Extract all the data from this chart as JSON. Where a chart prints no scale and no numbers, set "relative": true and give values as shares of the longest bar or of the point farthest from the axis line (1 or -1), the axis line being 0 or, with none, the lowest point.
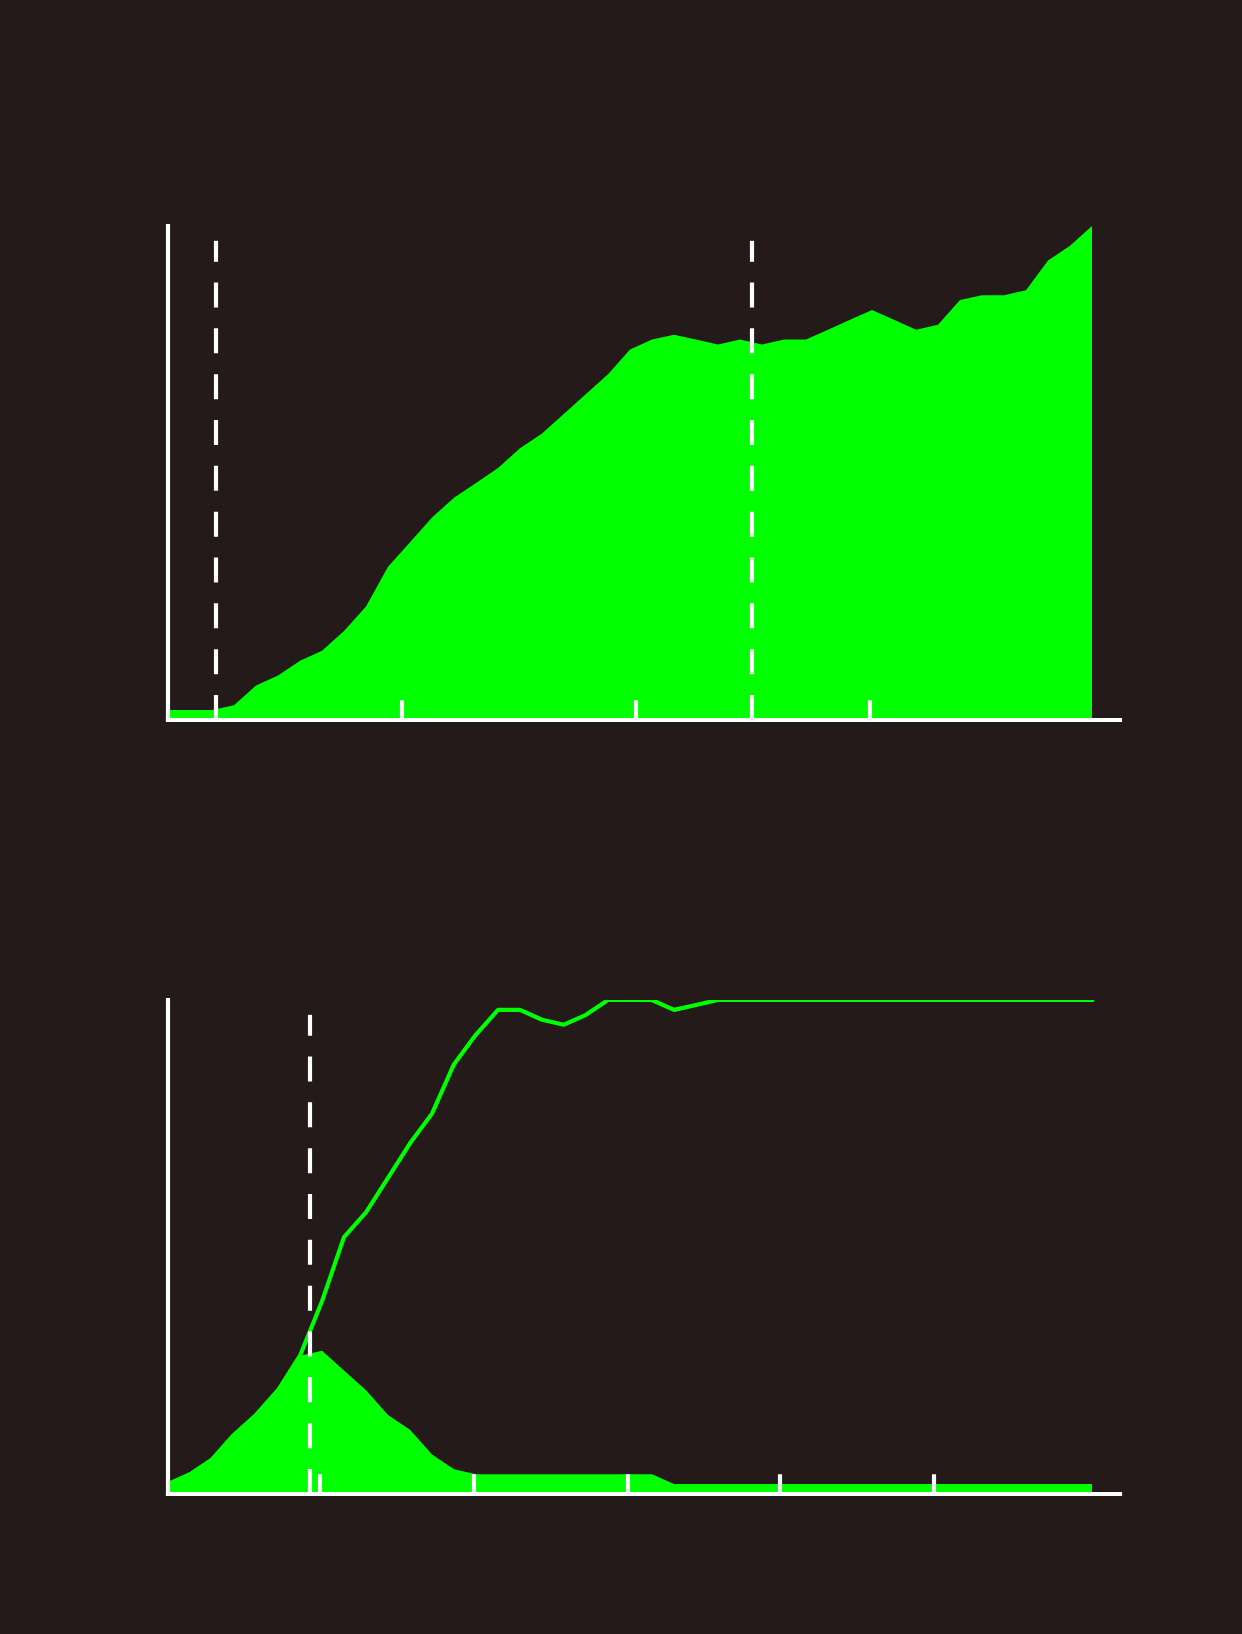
{
  "chart_data": [
    {
      "type": "area",
      "relative": true,
      "categories": [
        null,
        null,
        null,
        null,
        null,
        null,
        null,
        null,
        null,
        null,
        null,
        null,
        null,
        null,
        null,
        null,
        null,
        null,
        null,
        null,
        null,
        null,
        null,
        null,
        null,
        null,
        null,
        null,
        null,
        null,
        null,
        null,
        null,
        null,
        null,
        null,
        null,
        null,
        null,
        null,
        null,
        null,
        null
      ],
      "series": [
        {
          "color": "#00ff00",
          "values": [
            0.02,
            0.02,
            0.02,
            0.03,
            0.07,
            0.09,
            0.12,
            0.14,
            0.18,
            0.23,
            0.31,
            0.36,
            0.41,
            0.45,
            0.48,
            0.51,
            0.55,
            0.58,
            0.62,
            0.66,
            0.7,
            0.75,
            0.77,
            0.78,
            0.77,
            0.76,
            0.77,
            0.76,
            0.77,
            0.77,
            0.79,
            0.81,
            0.83,
            0.81,
            0.79,
            0.8,
            0.85,
            0.86,
            0.86,
            0.87,
            0.93,
            0.96,
            1.0
          ]
        }
      ]
    },
    {
      "type": "area",
      "relative": true,
      "categories": [
        null,
        null,
        null,
        null,
        null,
        null,
        null,
        null,
        null,
        null,
        null,
        null,
        null,
        null,
        null,
        null,
        null,
        null,
        null,
        null,
        null,
        null,
        null,
        null,
        null,
        null,
        null,
        null,
        null,
        null,
        null,
        null,
        null,
        null,
        null,
        null,
        null,
        null,
        null,
        null,
        null,
        null,
        null
      ],
      "series": [
        {
          "type": "area",
          "color": "#00ff00",
          "values": [
            0.02,
            0.04,
            0.07,
            0.12,
            0.16,
            0.21,
            0.28,
            0.29,
            0.25,
            0.21,
            0.16,
            0.13,
            0.08,
            0.05,
            0.04,
            0.04,
            0.04,
            0.04,
            0.04,
            0.04,
            0.04,
            0.04,
            0.04,
            0.02,
            0.02,
            0.02,
            0.02,
            0.02,
            0.02,
            0.02,
            0.02,
            0.02,
            0.02,
            0.02,
            0.02,
            0.02,
            0.02,
            0.02,
            0.02,
            0.02,
            0.02,
            0.02,
            0.02
          ]
        },
        {
          "type": "line",
          "color": "#00ff00",
          "values": [
            0.02,
            0.04,
            0.07,
            0.12,
            0.16,
            0.21,
            0.28,
            0.39,
            0.52,
            0.57,
            0.64,
            0.71,
            0.77,
            0.87,
            0.93,
            0.98,
            0.98,
            0.96,
            0.95,
            0.97,
            1.0,
            1.0,
            1.0,
            0.98,
            0.99,
            1.0,
            1.0,
            1.0,
            1.0,
            1.0,
            1.0,
            1.0,
            1.0,
            1.0,
            1.0,
            1.0,
            1.0,
            1.0,
            1.0,
            1.0,
            1.0,
            1.0,
            1.0
          ]
        }
      ]
    }
  ]
}
